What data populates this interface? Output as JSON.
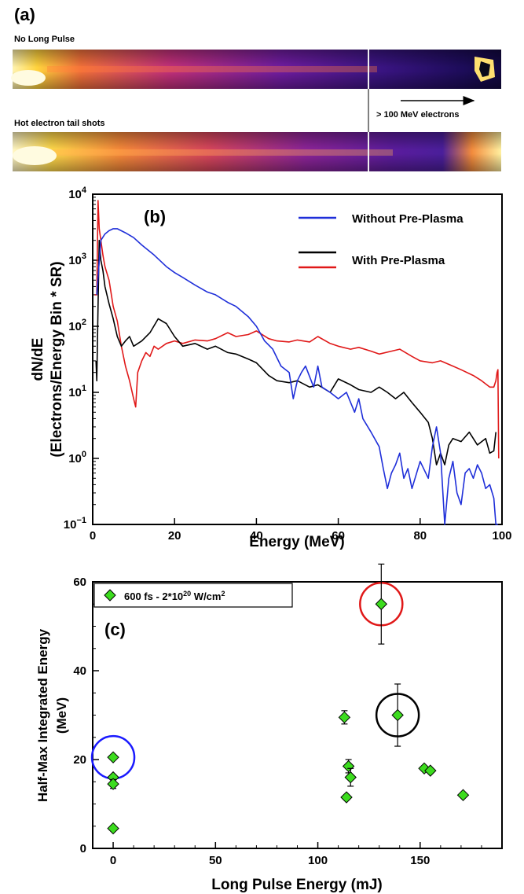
{
  "panel_a": {
    "label": "(a)",
    "strip1_label": "No Long Pulse",
    "strip2_label": "Hot electron tail shots",
    "arrow_label": "> 100 MeV electrons"
  },
  "chart_data": [
    {
      "type": "line",
      "panel_label": "(b)",
      "title": "",
      "xlabel": "Energy (MeV)",
      "ylabel_line1": "dN/dE",
      "ylabel_line2": "(Electrons/Energy Bin * SR)",
      "xlim": [
        0,
        100
      ],
      "ylim": [
        0.1,
        10000
      ],
      "yscale": "log",
      "x_ticks": [
        0,
        20,
        40,
        60,
        80,
        100
      ],
      "y_ticks": [
        {
          "value": 10000,
          "base": "10",
          "exp": "4"
        },
        {
          "value": 1000,
          "base": "10",
          "exp": "3"
        },
        {
          "value": 100,
          "base": "10",
          "exp": "2"
        },
        {
          "value": 10,
          "base": "10",
          "exp": "1"
        },
        {
          "value": 1,
          "base": "10",
          "exp": "0"
        },
        {
          "value": 0.1,
          "base": "10",
          "exp": "−1"
        }
      ],
      "grid": false,
      "legend_position": "top-right",
      "legend_lines": [
        {
          "label": "Without Pre-Plasma",
          "colors": [
            "#1f2fd9"
          ]
        },
        {
          "label": "With Pre-Plasma",
          "colors": [
            "#000000",
            "#e01818"
          ]
        }
      ],
      "series": [
        {
          "color": "#1f2fd9",
          "x": [
            1,
            1.5,
            2,
            3,
            4,
            5,
            6,
            8,
            10,
            12,
            15,
            18,
            20,
            22,
            25,
            28,
            30,
            33,
            35,
            38,
            40,
            42,
            44,
            46,
            48,
            49,
            50,
            51,
            52,
            54,
            55,
            56,
            58,
            60,
            62,
            64,
            65,
            66,
            68,
            70,
            71,
            72,
            73,
            74,
            75,
            76,
            77,
            78,
            80,
            82,
            83,
            84,
            85,
            86,
            87,
            88,
            89,
            90,
            91,
            92,
            93,
            94,
            95,
            96,
            97,
            98,
            98.5,
            99
          ],
          "y": [
            300,
            800,
            2000,
            2500,
            2800,
            3000,
            3000,
            2600,
            2200,
            1700,
            1200,
            800,
            650,
            550,
            420,
            330,
            300,
            230,
            200,
            140,
            100,
            60,
            45,
            25,
            20,
            8,
            15,
            20,
            25,
            12,
            25,
            12,
            10,
            8,
            10,
            5,
            8,
            4,
            2.5,
            1.5,
            0.7,
            0.35,
            0.6,
            0.8,
            1.2,
            0.5,
            0.7,
            0.35,
            0.9,
            0.5,
            1.5,
            3,
            1.2,
            0.06,
            0.5,
            0.9,
            0.3,
            0.2,
            0.6,
            0.7,
            0.5,
            0.8,
            0.6,
            0.35,
            0.4,
            0.25,
            0.1,
            0.06
          ]
        },
        {
          "color": "#000000",
          "x": [
            0.8,
            1,
            1.3,
            1.6,
            2,
            2.5,
            3,
            4,
            5,
            6,
            7,
            8,
            9,
            10,
            12,
            14,
            16,
            18,
            20,
            22,
            25,
            28,
            30,
            33,
            35,
            38,
            40,
            43,
            45,
            48,
            50,
            53,
            55,
            58,
            60,
            63,
            65,
            68,
            70,
            72,
            74,
            76,
            78,
            80,
            82,
            83,
            84,
            85,
            86,
            87,
            88,
            90,
            92,
            94,
            96,
            97,
            98,
            98.5
          ],
          "y": [
            30,
            15,
            200,
            2000,
            1000,
            700,
            400,
            220,
            130,
            70,
            50,
            60,
            70,
            50,
            60,
            80,
            130,
            110,
            70,
            50,
            55,
            45,
            50,
            40,
            38,
            32,
            28,
            18,
            15,
            14,
            15,
            12,
            13,
            10,
            16,
            13,
            11,
            10,
            12,
            10,
            8,
            10,
            7,
            5,
            3.5,
            2,
            0.8,
            1.2,
            0.8,
            1.6,
            2,
            1.8,
            2.5,
            1.6,
            2,
            1.2,
            1.3,
            2.5
          ]
        },
        {
          "color": "#e01818",
          "x": [
            0.5,
            1,
            1.3,
            1.6,
            2,
            2.5,
            3,
            4,
            5,
            6,
            7,
            8,
            9,
            10,
            10.5,
            11,
            12,
            13,
            14,
            15,
            16,
            18,
            20,
            22,
            25,
            28,
            30,
            33,
            35,
            38,
            40,
            43,
            45,
            48,
            50,
            53,
            55,
            58,
            60,
            63,
            65,
            68,
            70,
            73,
            75,
            78,
            80,
            83,
            85,
            88,
            90,
            93,
            95,
            97,
            98,
            98.5,
            98.8,
            99,
            99.2
          ],
          "y": [
            300,
            300,
            8000,
            3000,
            2000,
            1200,
            800,
            500,
            200,
            120,
            50,
            25,
            15,
            8,
            6,
            20,
            30,
            40,
            35,
            50,
            45,
            55,
            60,
            55,
            62,
            60,
            65,
            80,
            70,
            75,
            85,
            65,
            60,
            58,
            62,
            58,
            70,
            55,
            50,
            45,
            48,
            42,
            38,
            42,
            45,
            35,
            30,
            28,
            30,
            25,
            22,
            18,
            15,
            12,
            12,
            15,
            20,
            22,
            1
          ]
        }
      ]
    },
    {
      "type": "scatter",
      "panel_label": "(c)",
      "title": "",
      "xlabel": "Long Pulse Energy (mJ)",
      "ylabel_line1": "Half-Max Integrated Energy",
      "ylabel_line2": "(MeV)",
      "xlim": [
        -10,
        190
      ],
      "ylim": [
        0,
        60
      ],
      "x_ticks": [
        0,
        50,
        100,
        150
      ],
      "y_ticks": [
        0,
        20,
        40,
        60
      ],
      "grid": false,
      "legend_position": "top-left",
      "legend": {
        "prefix": "600 fs - 2*10",
        "exp": "20",
        "suffix": " W/cm",
        "exp2": "2"
      },
      "marker_color": "#3cdc1e",
      "points": [
        {
          "x": 0,
          "y": 20.5,
          "err": 0
        },
        {
          "x": 0,
          "y": 16,
          "err": 0
        },
        {
          "x": 0,
          "y": 14.5,
          "err": 1
        },
        {
          "x": 0,
          "y": 4.5,
          "err": 0
        },
        {
          "x": 113,
          "y": 29.5,
          "err": 1.5
        },
        {
          "x": 114,
          "y": 11.5,
          "err": 0
        },
        {
          "x": 115,
          "y": 18.5,
          "err": 1.5
        },
        {
          "x": 116,
          "y": 16,
          "err": 2
        },
        {
          "x": 131,
          "y": 55,
          "err": 9
        },
        {
          "x": 139,
          "y": 30,
          "err": 7
        },
        {
          "x": 152,
          "y": 18,
          "err": 0
        },
        {
          "x": 155,
          "y": 17.5,
          "err": 0
        },
        {
          "x": 171,
          "y": 12,
          "err": 0
        }
      ],
      "highlight_circles": [
        {
          "x": 0,
          "y": 20.5,
          "color": "#1a1aff"
        },
        {
          "x": 131,
          "y": 55,
          "color": "#e01818"
        },
        {
          "x": 139,
          "y": 30,
          "color": "#000000"
        }
      ]
    }
  ]
}
